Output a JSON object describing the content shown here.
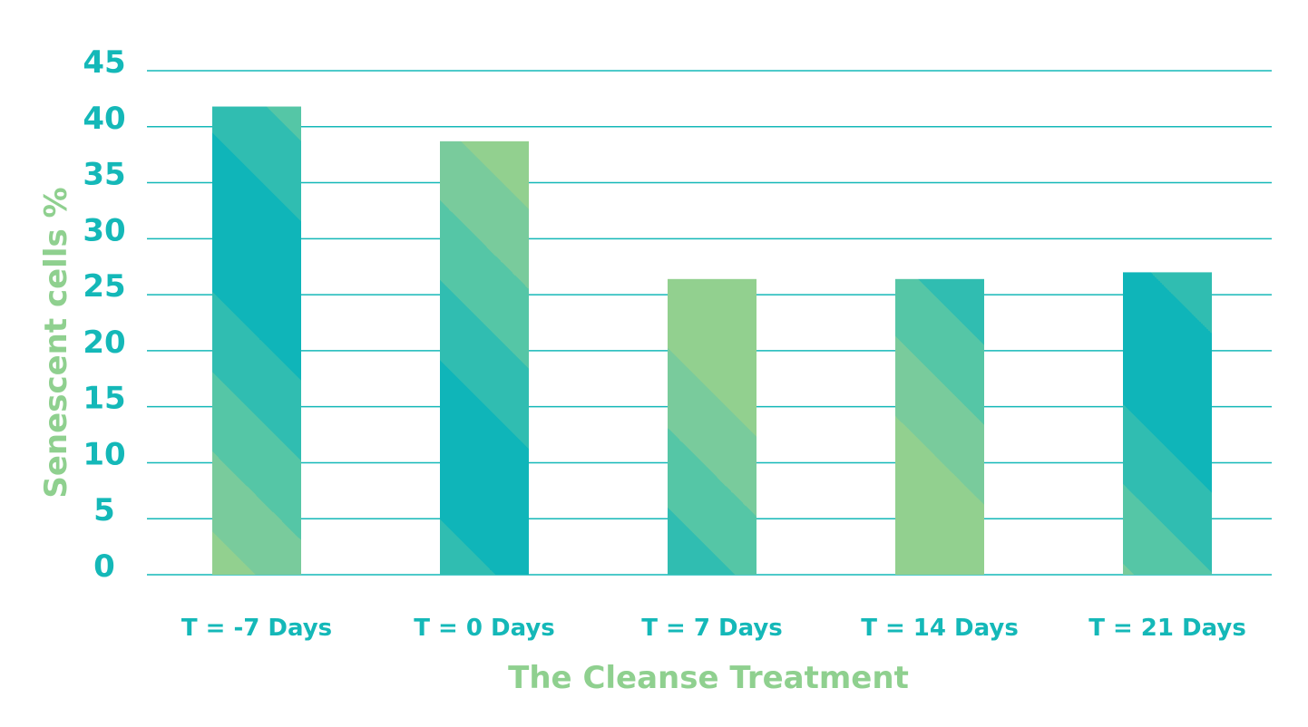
{
  "chart_data": {
    "type": "bar",
    "categories": [
      "T = -7 Days",
      "T = 0 Days",
      "T = 7 Days",
      "T = 14 Days",
      "T = 21 Days"
    ],
    "values": [
      41.8,
      38.7,
      26.4,
      26.4,
      27.0
    ],
    "title": "",
    "xlabel": "The Cleanse Treatment",
    "ylabel": "Senescent cells %",
    "ylim": [
      0,
      45
    ],
    "yticks": [
      "0",
      "5",
      "10",
      "15",
      "20",
      "25",
      "30",
      "35",
      "40",
      "45"
    ],
    "grid": true,
    "legend": "none"
  },
  "colors": {
    "tick_text": "#14b8b8",
    "axis_title": "#8fd08f",
    "grid": "#14b8b8",
    "bar_stripes": [
      "#0fb5b9",
      "#30bdb1",
      "#55c6a6",
      "#79cb9c",
      "#92d08f"
    ]
  }
}
